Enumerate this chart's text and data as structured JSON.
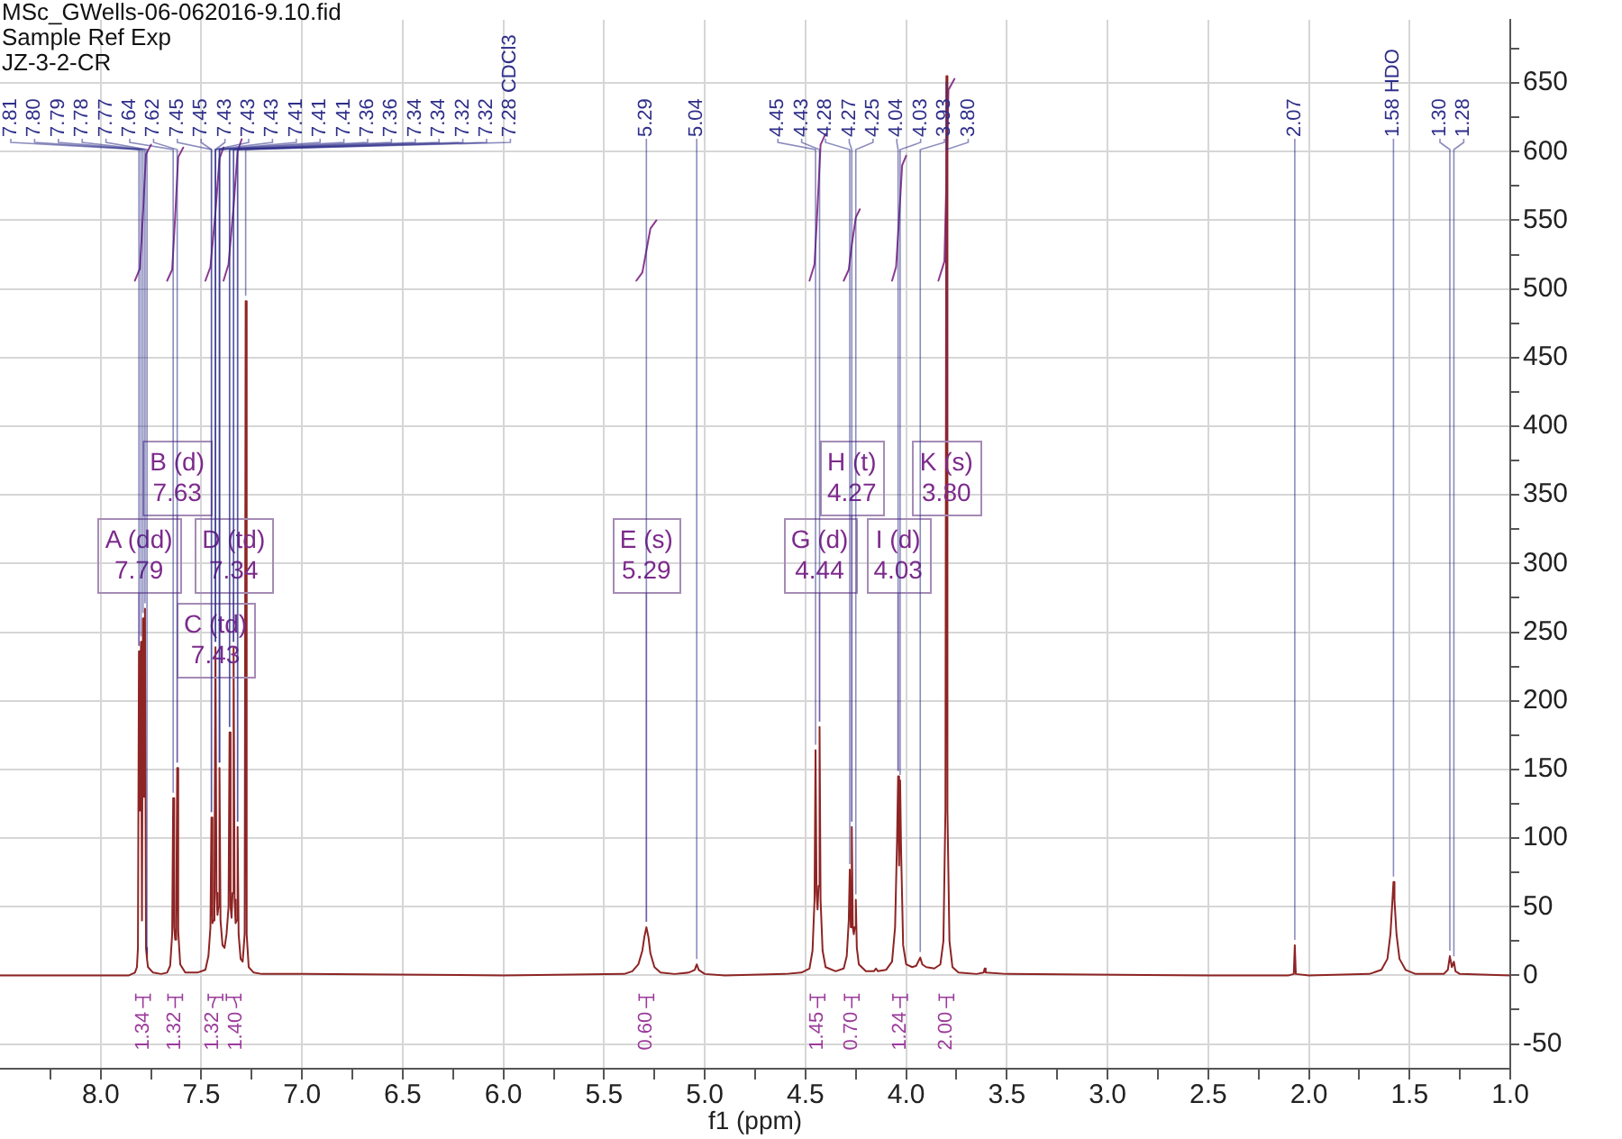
{
  "chart_data": {
    "type": "line",
    "title": "MSc_GWells-06-062016-9.10.fid",
    "subtitle": "Sample Ref Exp\nJZ-3-2-CR",
    "xlabel": "f1 (ppm)",
    "xlim": [
      8.5,
      1.0
    ],
    "xticks": [
      {
        "value": 8.25,
        "label": null
      },
      {
        "value": 8,
        "label": "8.0"
      },
      {
        "value": 7.75,
        "label": null
      },
      7.5,
      {
        "value": 7.25,
        "label": null
      },
      {
        "value": 7,
        "label": "7.0"
      },
      {
        "value": 6.75,
        "label": null
      },
      6.5,
      {
        "value": 6.25,
        "label": null
      },
      {
        "value": 6,
        "label": "6.0"
      },
      {
        "value": 5.75,
        "label": null
      },
      5.5,
      {
        "value": 5.25,
        "label": null
      },
      {
        "value": 5,
        "label": "5.0"
      },
      {
        "value": 4.75,
        "label": null
      },
      4.5,
      {
        "value": 4.25,
        "label": null
      },
      {
        "value": 4,
        "label": "4.0"
      },
      {
        "value": 3.75,
        "label": null
      },
      3.5,
      {
        "value": 3.25,
        "label": null
      },
      {
        "value": 3,
        "label": "3.0"
      },
      {
        "value": 2.75,
        "label": null
      },
      2.5,
      {
        "value": 2.25,
        "label": null
      },
      {
        "value": 2,
        "label": "2.0"
      },
      {
        "value": 1.75,
        "label": null
      },
      1.5,
      {
        "value": 1.25,
        "label": null
      },
      {
        "value": 1,
        "label": "1.0"
      }
    ],
    "ylim": [
      -68,
      696
    ],
    "yticks": [
      -50,
      {
        "value": -25,
        "label": null
      },
      0,
      {
        "value": 25,
        "label": null
      },
      50,
      {
        "value": 75,
        "label": null
      },
      100,
      {
        "value": 125,
        "label": null
      },
      150,
      {
        "value": 175,
        "label": null
      },
      200,
      {
        "value": 225,
        "label": null
      },
      250,
      {
        "value": 275,
        "label": null
      },
      300,
      {
        "value": 325,
        "label": null
      },
      350,
      {
        "value": 375,
        "label": null
      },
      400,
      {
        "value": 425,
        "label": null
      },
      450,
      {
        "value": 475,
        "label": null
      },
      500,
      {
        "value": 525,
        "label": null
      },
      550,
      {
        "value": 575,
        "label": null
      },
      600,
      {
        "value": 625,
        "label": null
      },
      650,
      {
        "value": 675,
        "label": null
      }
    ],
    "grid": true,
    "series": [
      {
        "color": "#8e2424",
        "x": [
          8.5,
          7.86,
          7.83,
          7.82,
          7.815,
          7.81,
          7.805,
          7.8,
          7.795,
          7.79,
          7.785,
          7.78,
          7.775,
          7.77,
          7.765,
          7.74,
          7.7,
          7.67,
          7.655,
          7.645,
          7.64,
          7.635,
          7.63,
          7.625,
          7.62,
          7.615,
          7.605,
          7.58,
          7.52,
          7.48,
          7.465,
          7.455,
          7.45,
          7.445,
          7.44,
          7.435,
          7.43,
          7.425,
          7.42,
          7.415,
          7.41,
          7.405,
          7.395,
          7.385,
          7.375,
          7.365,
          7.36,
          7.355,
          7.35,
          7.345,
          7.34,
          7.335,
          7.33,
          7.325,
          7.32,
          7.315,
          7.305,
          7.295,
          7.285,
          7.28,
          7.275,
          7.265,
          7.24,
          7.2,
          7.0,
          6.0,
          5.4,
          5.36,
          5.33,
          5.31,
          5.3,
          5.29,
          5.28,
          5.27,
          5.25,
          5.22,
          5.15,
          5.08,
          5.05,
          5.04,
          5.03,
          5.0,
          4.9,
          4.6,
          4.52,
          4.48,
          4.465,
          4.455,
          4.45,
          4.445,
          4.44,
          4.435,
          4.43,
          4.425,
          4.415,
          4.4,
          4.35,
          4.31,
          4.295,
          4.285,
          4.28,
          4.275,
          4.27,
          4.265,
          4.26,
          4.255,
          4.25,
          4.245,
          4.235,
          4.2,
          4.16,
          4.15,
          4.14,
          4.1,
          4.07,
          4.055,
          4.045,
          4.04,
          4.035,
          4.03,
          4.025,
          4.015,
          4.0,
          3.97,
          3.95,
          3.93,
          3.92,
          3.9,
          3.86,
          3.83,
          3.815,
          3.805,
          3.8,
          3.795,
          3.785,
          3.77,
          3.74,
          3.65,
          3.615,
          3.61,
          3.605,
          3.5,
          2.5,
          2.1,
          2.075,
          2.07,
          2.065,
          2.0,
          1.7,
          1.64,
          1.61,
          1.595,
          1.585,
          1.58,
          1.575,
          1.565,
          1.55,
          1.52,
          1.47,
          1.33,
          1.31,
          1.3,
          1.29,
          1.28,
          1.272,
          1.25,
          1.0
        ],
        "values": [
          0,
          0,
          2,
          6,
          20,
          236,
          120,
          243,
          40,
          260,
          130,
          267,
          20,
          12,
          6,
          2,
          1,
          2,
          7,
          30,
          129,
          35,
          26,
          40,
          151,
          32,
          8,
          2,
          2,
          4,
          14,
          35,
          115,
          38,
          40,
          60,
          239,
          60,
          44,
          50,
          151,
          40,
          22,
          20,
          30,
          50,
          177,
          50,
          42,
          60,
          239,
          55,
          38,
          40,
          108,
          30,
          12,
          10,
          30,
          491,
          30,
          6,
          2,
          1,
          1,
          0,
          1,
          3,
          8,
          18,
          28,
          35,
          28,
          16,
          6,
          2,
          1,
          2,
          4,
          8,
          4,
          1,
          0,
          1,
          2,
          5,
          18,
          55,
          164,
          60,
          48,
          65,
          181,
          55,
          18,
          6,
          3,
          5,
          14,
          40,
          77,
          35,
          108,
          35,
          30,
          35,
          55,
          20,
          8,
          3,
          3,
          5,
          3,
          4,
          10,
          35,
          100,
          145,
          80,
          142,
          90,
          22,
          8,
          6,
          7,
          13,
          8,
          6,
          5,
          8,
          25,
          120,
          655,
          120,
          25,
          6,
          2,
          1,
          2,
          5,
          2,
          1,
          0,
          0,
          1,
          22,
          1,
          0,
          1,
          4,
          12,
          30,
          55,
          68,
          55,
          30,
          12,
          4,
          1,
          1,
          4,
          14,
          6,
          10,
          3,
          1,
          0
        ]
      },
      {
        "color": "#8b3a8f",
        "x": [
          7.83,
          7.805,
          7.79,
          7.775,
          7.75
        ],
        "values": [
          506,
          515,
          555,
          598,
          605
        ]
      },
      {
        "color": "#8b3a8f",
        "x": [
          7.67,
          7.645,
          7.63,
          7.615,
          7.59
        ],
        "values": [
          506,
          514,
          553,
          596,
          603
        ]
      },
      {
        "color": "#8b3a8f",
        "x": [
          7.48,
          7.455,
          7.43,
          7.41,
          7.39
        ],
        "values": [
          506,
          516,
          556,
          595,
          603
        ]
      },
      {
        "color": "#8b3a8f",
        "x": [
          7.39,
          7.365,
          7.34,
          7.32,
          7.3
        ],
        "values": [
          506,
          518,
          560,
          600,
          609
        ]
      },
      {
        "color": "#8b3a8f",
        "x": [
          5.34,
          5.31,
          5.29,
          5.27,
          5.24
        ],
        "values": [
          506,
          512,
          528,
          544,
          550
        ]
      },
      {
        "color": "#8b3a8f",
        "x": [
          4.48,
          4.455,
          4.44,
          4.425,
          4.4
        ],
        "values": [
          506,
          518,
          560,
          605,
          613
        ]
      },
      {
        "color": "#8b3a8f",
        "x": [
          4.31,
          4.285,
          4.27,
          4.25,
          4.23
        ],
        "values": [
          506,
          514,
          532,
          552,
          558
        ]
      },
      {
        "color": "#8b3a8f",
        "x": [
          4.07,
          4.05,
          4.035,
          4.02,
          4.0
        ],
        "values": [
          506,
          516,
          552,
          590,
          597
        ]
      },
      {
        "color": "#8b3a8f",
        "x": [
          3.84,
          3.81,
          3.8,
          3.79,
          3.76
        ],
        "values": [
          506,
          520,
          580,
          645,
          653
        ]
      }
    ],
    "annotations": [
      {
        "text": "A (dd)\n7.79",
        "x": 7.81,
        "y": 236
      },
      {
        "text": "B (d)\n7.63",
        "x": 7.62,
        "y": 151
      },
      {
        "text": "C (td)\n7.43",
        "x": 7.43,
        "y": 239
      },
      {
        "text": "D (td)\n7.34",
        "x": 7.34,
        "y": 239
      },
      {
        "text": "E (s)\n5.29",
        "x": 5.29,
        "y": 35
      },
      {
        "text": "G (d)\n4.44",
        "x": 4.43,
        "y": 181
      },
      {
        "text": "H (t)\n4.27",
        "x": 4.27,
        "y": 108
      },
      {
        "text": "I (d)\n4.03",
        "x": 4.04,
        "y": 145
      },
      {
        "text": "K (s)\n3.80",
        "x": 3.8,
        "y": 655
      },
      {
        "text": "7.81",
        "x": 7.81,
        "y": 236
      },
      {
        "text": "7.80",
        "x": 7.8,
        "y": 243
      },
      {
        "text": "7.79",
        "x": 7.79,
        "y": 260
      },
      {
        "text": "7.78",
        "x": 7.78,
        "y": 267
      },
      {
        "text": "7.77",
        "x": 7.77,
        "y": 12
      },
      {
        "text": "7.64",
        "x": 7.64,
        "y": 129
      },
      {
        "text": "7.62",
        "x": 7.62,
        "y": 151
      },
      {
        "text": "7.45",
        "x": 7.45,
        "y": 115
      },
      {
        "text": "7.45",
        "x": 7.45,
        "y": 115
      },
      {
        "text": "7.43",
        "x": 7.43,
        "y": 239
      },
      {
        "text": "7.43",
        "x": 7.43,
        "y": 239
      },
      {
        "text": "7.43",
        "x": 7.43,
        "y": 239
      },
      {
        "text": "7.41",
        "x": 7.41,
        "y": 151
      },
      {
        "text": "7.41",
        "x": 7.41,
        "y": 151
      },
      {
        "text": "7.41",
        "x": 7.41,
        "y": 151
      },
      {
        "text": "7.36",
        "x": 7.36,
        "y": 177
      },
      {
        "text": "7.36",
        "x": 7.36,
        "y": 177
      },
      {
        "text": "7.34",
        "x": 7.34,
        "y": 239
      },
      {
        "text": "7.34",
        "x": 7.34,
        "y": 239
      },
      {
        "text": "7.32",
        "x": 7.32,
        "y": 108
      },
      {
        "text": "7.32",
        "x": 7.32,
        "y": 108
      },
      {
        "text": "7.28 CDCl3",
        "x": 7.28,
        "y": 491
      },
      {
        "text": "5.29",
        "x": 5.29,
        "y": 35
      },
      {
        "text": "5.04",
        "x": 5.04,
        "y": 8
      },
      {
        "text": "4.45",
        "x": 4.45,
        "y": 164
      },
      {
        "text": "4.43",
        "x": 4.43,
        "y": 181
      },
      {
        "text": "4.28",
        "x": 4.28,
        "y": 77
      },
      {
        "text": "4.27",
        "x": 4.27,
        "y": 108
      },
      {
        "text": "4.25",
        "x": 4.25,
        "y": 55
      },
      {
        "text": "4.04",
        "x": 4.04,
        "y": 145
      },
      {
        "text": "4.03",
        "x": 4.03,
        "y": 142
      },
      {
        "text": "3.93",
        "x": 3.93,
        "y": 13
      },
      {
        "text": "3.80",
        "x": 3.8,
        "y": 655
      },
      {
        "text": "2.07",
        "x": 2.07,
        "y": 22
      },
      {
        "text": "1.58 HDO",
        "x": 1.58,
        "y": 68
      },
      {
        "text": "1.30",
        "x": 1.3,
        "y": 14
      },
      {
        "text": "1.28",
        "x": 1.28,
        "y": 10
      },
      {
        "text": "1.34",
        "x": 7.79,
        "y": -16
      },
      {
        "text": "1.32",
        "x": 7.63,
        "y": -16
      },
      {
        "text": "1.32",
        "x": 7.43,
        "y": -16
      },
      {
        "text": "1.40",
        "x": 7.34,
        "y": -16
      },
      {
        "text": "0.60",
        "x": 5.29,
        "y": -16
      },
      {
        "text": "1.45",
        "x": 4.44,
        "y": -16
      },
      {
        "text": "0.70",
        "x": 4.27,
        "y": -16
      },
      {
        "text": "1.24",
        "x": 4.03,
        "y": -16
      },
      {
        "text": "2.00",
        "x": 3.8,
        "y": -16
      }
    ]
  }
}
